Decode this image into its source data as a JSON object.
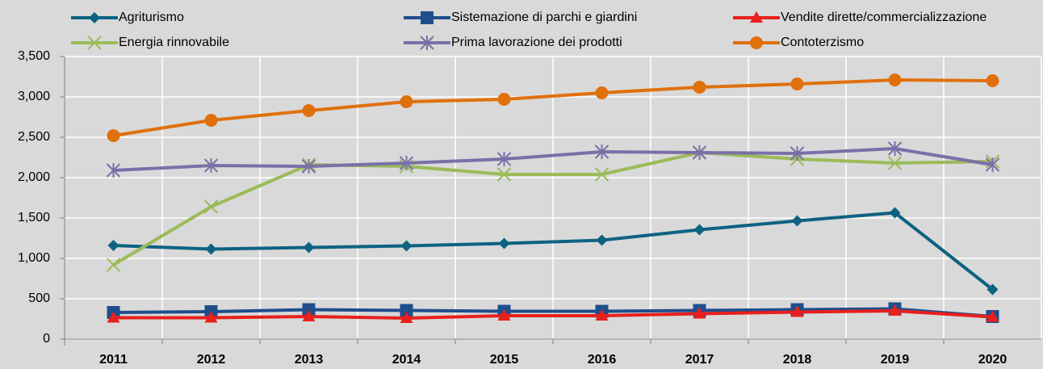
{
  "chart_data": {
    "type": "line",
    "categories": [
      "2011",
      "2012",
      "2013",
      "2014",
      "2015",
      "2016",
      "2017",
      "2018",
      "2019",
      "2020"
    ],
    "series": [
      {
        "name": "Agriturismo",
        "color": "#0d6282",
        "marker": "diamond",
        "values": [
          1160,
          1115,
          1135,
          1155,
          1185,
          1225,
          1355,
          1465,
          1565,
          615
        ]
      },
      {
        "name": "Sistemazione di parchi e giardini",
        "color": "#1f4e8c",
        "marker": "square",
        "values": [
          330,
          340,
          365,
          355,
          345,
          345,
          355,
          365,
          375,
          280
        ]
      },
      {
        "name": "Vendite dirette/commercializzazione",
        "color": "#e8201c",
        "marker": "triangle",
        "values": [
          265,
          265,
          280,
          260,
          290,
          290,
          315,
          335,
          350,
          275
        ]
      },
      {
        "name": "Energia rinnovabile",
        "color": "#9bbb59",
        "marker": "x",
        "values": [
          920,
          1640,
          2160,
          2140,
          2040,
          2040,
          2310,
          2230,
          2180,
          2200
        ]
      },
      {
        "name": "Prima lavorazione dei prodotti",
        "color": "#7a70a8",
        "marker": "asterisk",
        "values": [
          2090,
          2150,
          2140,
          2180,
          2230,
          2320,
          2310,
          2300,
          2360,
          2160
        ]
      },
      {
        "name": "Contoterzismo",
        "color": "#e0700c",
        "marker": "circle",
        "values": [
          2520,
          2710,
          2830,
          2940,
          2970,
          3050,
          3120,
          3160,
          3210,
          3200
        ]
      }
    ],
    "ylim": [
      0,
      3500
    ],
    "yticks": [
      0,
      500,
      {
        "value": 1000,
        "label": "1,000"
      },
      {
        "value": 1500,
        "label": "1,500"
      },
      {
        "value": 2000,
        "label": "2,000"
      },
      {
        "value": 2500,
        "label": "2,500"
      },
      {
        "value": 3000,
        "label": "3,000"
      },
      {
        "value": 3500,
        "label": "3,500"
      }
    ],
    "grid": true
  }
}
